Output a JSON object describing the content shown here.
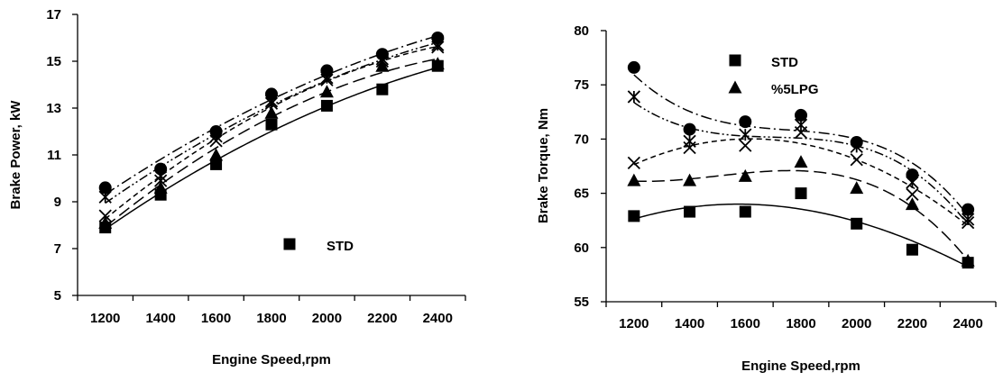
{
  "chart_data": [
    {
      "type": "scatter",
      "xlabel": "Engine Speed,rpm",
      "ylabel": "Brake Power, kW",
      "xlim": [
        1100,
        2500
      ],
      "ylim": [
        5,
        17
      ],
      "xticks": [
        1200,
        1400,
        1600,
        1800,
        2000,
        2200,
        2400
      ],
      "yticks": [
        5,
        7,
        9,
        11,
        13,
        15,
        17
      ],
      "grid": false,
      "legend": {
        "position": "bottom-center",
        "entries": [
          "STD"
        ]
      },
      "x": [
        1200,
        1400,
        1600,
        1800,
        2000,
        2200,
        2400
      ],
      "series": [
        {
          "name": "STD",
          "marker": "square",
          "line": "solid",
          "values": [
            7.9,
            9.3,
            10.6,
            12.3,
            13.1,
            13.8,
            14.8
          ]
        },
        {
          "marker": "triangle",
          "line": "long-dash",
          "values": [
            8.1,
            9.6,
            11.0,
            12.8,
            13.7,
            14.8,
            14.9
          ]
        },
        {
          "marker": "x",
          "line": "short-dash",
          "values": [
            8.4,
            9.9,
            11.6,
            13.2,
            14.2,
            15.0,
            15.6
          ]
        },
        {
          "marker": "star",
          "line": "dash-dot-dot",
          "values": [
            9.2,
            10.1,
            11.8,
            13.3,
            14.3,
            15.1,
            15.7
          ]
        },
        {
          "marker": "circle",
          "line": "dash-dot",
          "values": [
            9.6,
            10.4,
            12.0,
            13.6,
            14.6,
            15.3,
            16.0
          ]
        }
      ]
    },
    {
      "type": "scatter",
      "xlabel": "Engine Speed,rpm",
      "ylabel": "Brake Torque, Nm",
      "xlim": [
        1100,
        2500
      ],
      "ylim": [
        55,
        80
      ],
      "xticks": [
        1200,
        1400,
        1600,
        1800,
        2000,
        2200,
        2400
      ],
      "yticks": [
        55,
        60,
        65,
        70,
        75,
        80
      ],
      "grid": false,
      "legend": {
        "position": "top-center",
        "entries": [
          "STD",
          "%5LPG"
        ]
      },
      "x": [
        1200,
        1400,
        1600,
        1800,
        2000,
        2200,
        2400
      ],
      "series": [
        {
          "name": "STD",
          "marker": "square",
          "line": "solid",
          "values": [
            62.9,
            63.3,
            63.3,
            65.0,
            62.2,
            59.8,
            58.6
          ]
        },
        {
          "name": "%5LPG",
          "marker": "triangle",
          "line": "long-dash",
          "values": [
            66.2,
            66.2,
            66.6,
            67.9,
            65.5,
            64.0,
            58.8
          ]
        },
        {
          "marker": "x",
          "line": "short-dash",
          "values": [
            67.8,
            69.2,
            69.4,
            70.6,
            68.1,
            64.9,
            62.3
          ]
        },
        {
          "marker": "star",
          "line": "dash-dot-dot",
          "values": [
            73.9,
            69.8,
            70.4,
            71.3,
            69.3,
            66.0,
            62.6
          ]
        },
        {
          "marker": "circle",
          "line": "dash-dot",
          "values": [
            76.6,
            70.9,
            71.6,
            72.2,
            69.7,
            66.7,
            63.5
          ]
        }
      ]
    }
  ]
}
